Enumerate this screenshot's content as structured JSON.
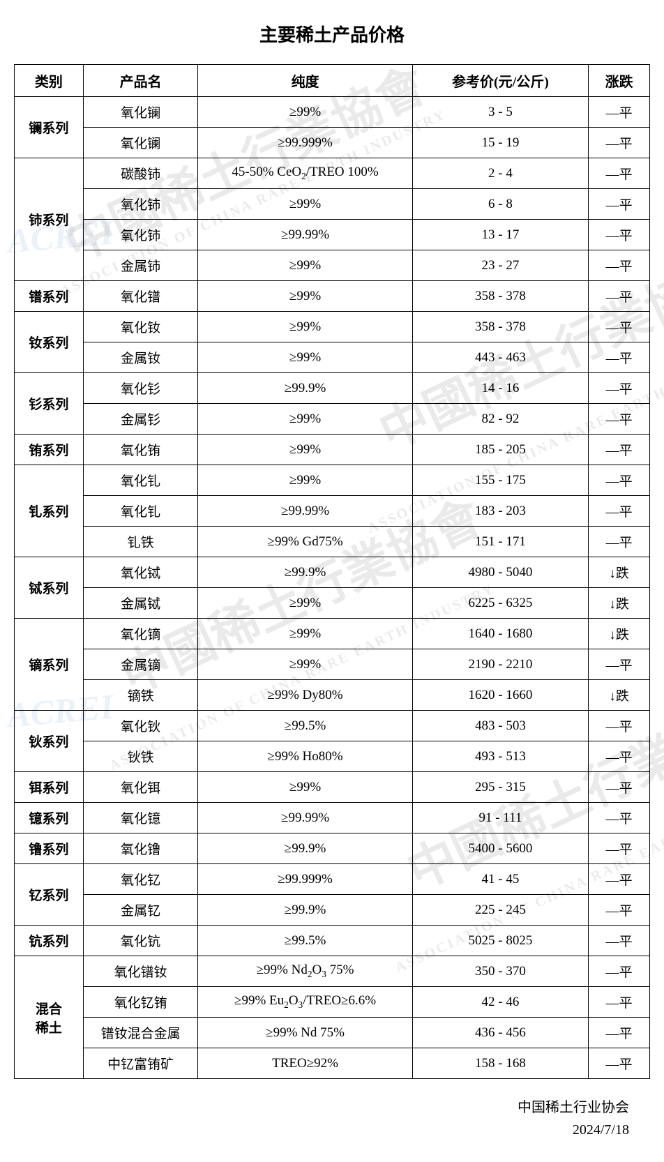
{
  "title": "主要稀土产品价格",
  "columns": {
    "category": "类别",
    "product": "产品名",
    "purity": "纯度",
    "price": "参考价(元/公斤)",
    "trend": "涨跌"
  },
  "categories": [
    {
      "name": "镧系列",
      "rows": [
        {
          "product": "氧化镧",
          "purity": "≥99%",
          "price": "3  -  5",
          "trend": "—平"
        },
        {
          "product": "氧化镧",
          "purity": "≥99.999%",
          "price": "15  -  19",
          "trend": "—平"
        }
      ]
    },
    {
      "name": "铈系列",
      "rows": [
        {
          "product": "碳酸铈",
          "purity": "45-50% CeO₂/TREO 100%",
          "price": "2  -  4",
          "trend": "—平"
        },
        {
          "product": "氧化铈",
          "purity": "≥99%",
          "price": "6  -  8",
          "trend": "—平"
        },
        {
          "product": "氧化铈",
          "purity": "≥99.99%",
          "price": "13  -  17",
          "trend": "—平"
        },
        {
          "product": "金属铈",
          "purity": "≥99%",
          "price": "23  -  27",
          "trend": "—平"
        }
      ]
    },
    {
      "name": "镨系列",
      "rows": [
        {
          "product": "氧化镨",
          "purity": "≥99%",
          "price": "358  -  378",
          "trend": "—平"
        }
      ]
    },
    {
      "name": "钕系列",
      "rows": [
        {
          "product": "氧化钕",
          "purity": "≥99%",
          "price": "358  -  378",
          "trend": "—平"
        },
        {
          "product": "金属钕",
          "purity": "≥99%",
          "price": "443  -  463",
          "trend": "—平"
        }
      ]
    },
    {
      "name": "钐系列",
      "rows": [
        {
          "product": "氧化钐",
          "purity": "≥99.9%",
          "price": "14  -  16",
          "trend": "—平"
        },
        {
          "product": "金属钐",
          "purity": "≥99%",
          "price": "82  -  92",
          "trend": "—平"
        }
      ]
    },
    {
      "name": "铕系列",
      "rows": [
        {
          "product": "氧化铕",
          "purity": "≥99%",
          "price": "185  -  205",
          "trend": "—平"
        }
      ]
    },
    {
      "name": "钆系列",
      "rows": [
        {
          "product": "氧化钆",
          "purity": "≥99%",
          "price": "155  -  175",
          "trend": "—平"
        },
        {
          "product": "氧化钆",
          "purity": "≥99.99%",
          "price": "183  -  203",
          "trend": "—平"
        },
        {
          "product": "钆铁",
          "purity": "≥99% Gd75%",
          "price": "151  -  171",
          "trend": "—平"
        }
      ]
    },
    {
      "name": "铽系列",
      "rows": [
        {
          "product": "氧化铽",
          "purity": "≥99.9%",
          "price": "4980  -  5040",
          "trend": "↓跌"
        },
        {
          "product": "金属铽",
          "purity": "≥99%",
          "price": "6225  -  6325",
          "trend": "↓跌"
        }
      ]
    },
    {
      "name": "镝系列",
      "rows": [
        {
          "product": "氧化镝",
          "purity": "≥99%",
          "price": "1640  -  1680",
          "trend": "↓跌"
        },
        {
          "product": "金属镝",
          "purity": "≥99%",
          "price": "2190  -  2210",
          "trend": "—平"
        },
        {
          "product": "镝铁",
          "purity": "≥99% Dy80%",
          "price": "1620  -  1660",
          "trend": "↓跌"
        }
      ]
    },
    {
      "name": "钬系列",
      "rows": [
        {
          "product": "氧化钬",
          "purity": "≥99.5%",
          "price": "483  -  503",
          "trend": "—平"
        },
        {
          "product": "钬铁",
          "purity": "≥99% Ho80%",
          "price": "493  -  513",
          "trend": "—平"
        }
      ]
    },
    {
      "name": "铒系列",
      "rows": [
        {
          "product": "氧化铒",
          "purity": "≥99%",
          "price": "295  -  315",
          "trend": "—平"
        }
      ]
    },
    {
      "name": "镱系列",
      "rows": [
        {
          "product": "氧化镱",
          "purity": "≥99.99%",
          "price": "91  -  111",
          "trend": "—平"
        }
      ]
    },
    {
      "name": "镥系列",
      "rows": [
        {
          "product": "氧化镥",
          "purity": "≥99.9%",
          "price": "5400  -  5600",
          "trend": "—平"
        }
      ]
    },
    {
      "name": "钇系列",
      "rows": [
        {
          "product": "氧化钇",
          "purity": "≥99.999%",
          "price": "41  -  45",
          "trend": "—平"
        },
        {
          "product": "金属钇",
          "purity": "≥99.9%",
          "price": "225  -  245",
          "trend": "—平"
        }
      ]
    },
    {
      "name": "钪系列",
      "rows": [
        {
          "product": "氧化钪",
          "purity": "≥99.5%",
          "price": "5025  -  8025",
          "trend": "—平"
        }
      ]
    },
    {
      "name": "混合\n稀土",
      "rows": [
        {
          "product": "氧化镨钕",
          "purity": "≥99%  Nd₂O₃ 75%",
          "price": "350  -  370",
          "trend": "—平"
        },
        {
          "product": "氧化钇铕",
          "purity": "≥99% Eu₂O₃/TREO≥6.6%",
          "price": "42  -  46",
          "trend": "—平"
        },
        {
          "product": "镨钕混合金属",
          "purity": "≥99% Nd 75%",
          "price": "436  -  456",
          "trend": "—平"
        },
        {
          "product": "中钇富铕矿",
          "purity": "TREO≥92%",
          "price": "158  -  168",
          "trend": "—平"
        }
      ]
    }
  ],
  "footer": {
    "org": "中国稀土行业协会",
    "date": "2024/7/18"
  },
  "watermark": {
    "cn": "中國稀土行業協會",
    "en": "ASSOCIATION OF CHINA RARE EARTH INDUSTRY",
    "acrei": "ACREI"
  },
  "styling": {
    "border_color": "#000000",
    "text_color": "#000000",
    "background_color": "#ffffff",
    "watermark_color_cn": "#808080",
    "watermark_color_blue": "#4a7bc8",
    "title_fontsize": 26,
    "header_fontsize": 20,
    "cell_fontsize": 19,
    "footer_fontsize": 20
  }
}
